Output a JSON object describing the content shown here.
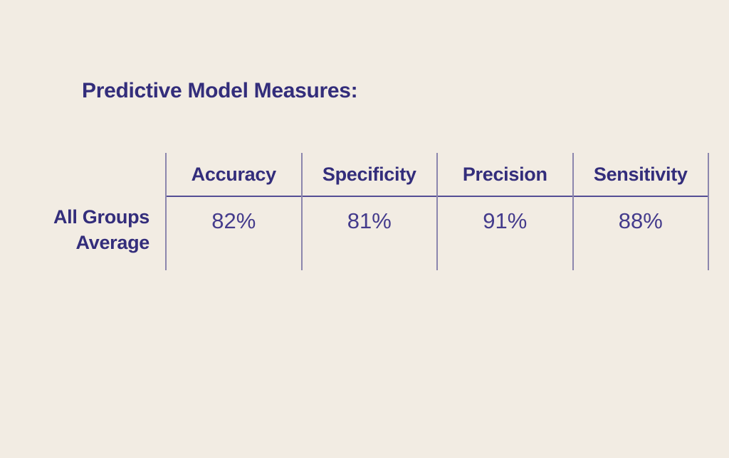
{
  "title": "Predictive Model Measures:",
  "table": {
    "row_label": "All Groups Average",
    "row_label_lines": [
      "All Groups",
      "Average"
    ],
    "columns": [
      "Accuracy",
      "Specificity",
      "Precision",
      "Sensitivity"
    ],
    "values": [
      "82%",
      "81%",
      "91%",
      "88%"
    ]
  },
  "chart_data": {
    "type": "table",
    "title": "Predictive Model Measures:",
    "columns": [
      "Accuracy",
      "Specificity",
      "Precision",
      "Sensitivity"
    ],
    "rows": [
      {
        "label": "All Groups Average",
        "values_percent": [
          82,
          81,
          91,
          88
        ]
      }
    ]
  },
  "colors": {
    "background": "#f2ece3",
    "heading_text": "#332d7b",
    "value_text": "#443b8c",
    "grid_line": "#8c86ad",
    "header_rule": "#554e95"
  }
}
